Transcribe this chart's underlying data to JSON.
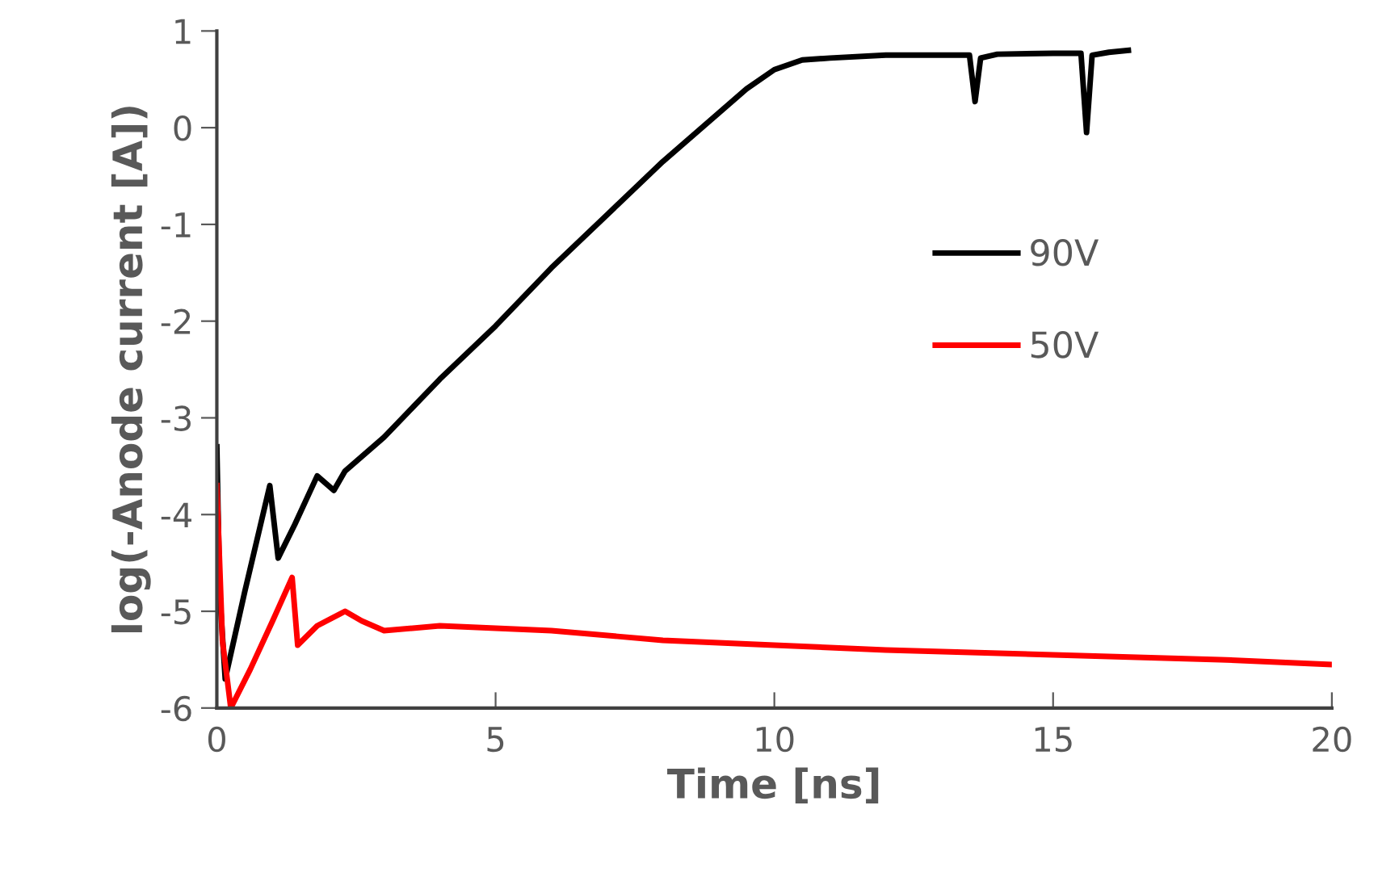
{
  "chart_data": {
    "type": "line",
    "xlabel": "Time [ns]",
    "ylabel": "log(-Anode current [A])",
    "xlim": [
      0,
      20
    ],
    "xticks": [
      0,
      5,
      10,
      15,
      20
    ],
    "ylim": [
      -6,
      1
    ],
    "yticks": [
      -6,
      -5,
      -4,
      -3,
      -2,
      -1,
      0,
      1
    ],
    "grid": false,
    "legend": "right",
    "marker": "none",
    "line_style": "solid",
    "series": [
      {
        "name": "90V",
        "color": "#000000",
        "x": [
          0,
          0.05,
          0.15,
          0.5,
          0.95,
          1.1,
          1.4,
          1.8,
          2.1,
          2.3,
          3,
          4,
          5,
          6,
          7,
          8,
          9,
          9.5,
          10,
          10.5,
          11,
          12,
          13,
          13.5,
          13.6,
          13.7,
          14,
          15,
          15.5,
          15.6,
          15.7,
          16,
          16.35
        ],
        "values": [
          -3.3,
          -4.8,
          -5.7,
          -4.8,
          -3.7,
          -4.45,
          -4.1,
          -3.6,
          -3.75,
          -3.55,
          -3.2,
          -2.6,
          -2.05,
          -1.45,
          -0.9,
          -0.35,
          0.15,
          0.4,
          0.6,
          0.7,
          0.72,
          0.75,
          0.75,
          0.75,
          0.27,
          0.72,
          0.76,
          0.77,
          0.77,
          -0.05,
          0.75,
          0.78,
          0.8
        ]
      },
      {
        "name": "50V",
        "color": "#ff0000",
        "x": [
          0,
          0.1,
          0.25,
          0.6,
          1.0,
          1.35,
          1.45,
          1.8,
          2.3,
          2.6,
          3,
          4,
          6,
          8,
          10,
          12,
          15,
          18,
          20
        ],
        "values": [
          -3.7,
          -5.3,
          -6,
          -5.6,
          -5.1,
          -4.65,
          -5.35,
          -5.15,
          -5.0,
          -5.1,
          -5.2,
          -5.15,
          -5.2,
          -5.3,
          -5.35,
          -5.4,
          -5.45,
          -5.5,
          -5.55
        ]
      }
    ]
  }
}
